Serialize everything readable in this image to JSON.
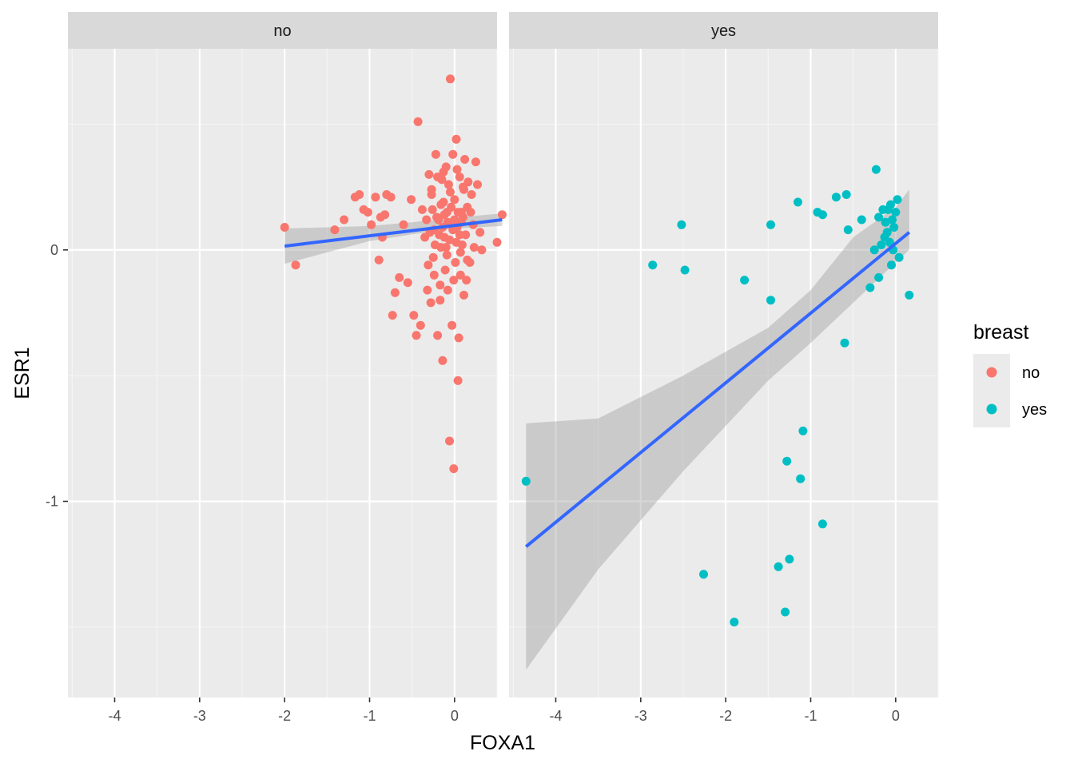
{
  "chart_data": {
    "type": "scatter",
    "xlabel": "FOXA1",
    "ylabel": "ESR1",
    "xlim": [
      -4.55,
      0.5
    ],
    "ylim": [
      -1.78,
      0.8
    ],
    "x_ticks": [
      -4,
      -3,
      -2,
      -1,
      0
    ],
    "y_ticks": [
      0,
      -1
    ],
    "grid": true,
    "legend": {
      "title": "breast",
      "position": "right",
      "entries": [
        {
          "label": "no",
          "color": "#f8766d"
        },
        {
          "label": "yes",
          "color": "#00bfc4"
        }
      ]
    },
    "smooth_color": "#3366ff",
    "facets": [
      {
        "strip": "no",
        "color": "#f8766d",
        "series": [
          {
            "name": "no",
            "points": [
              [
                -2.0,
                0.09
              ],
              [
                -1.87,
                -0.06
              ],
              [
                -1.41,
                0.08
              ],
              [
                -1.3,
                0.12
              ],
              [
                -1.17,
                0.21
              ],
              [
                -1.12,
                0.22
              ],
              [
                -1.07,
                0.16
              ],
              [
                -1.02,
                0.15
              ],
              [
                -0.98,
                0.1
              ],
              [
                -0.93,
                0.21
              ],
              [
                -0.89,
                -0.04
              ],
              [
                -0.87,
                0.13
              ],
              [
                -0.85,
                0.05
              ],
              [
                -0.82,
                0.14
              ],
              [
                -0.8,
                0.22
              ],
              [
                -0.75,
                0.21
              ],
              [
                -0.73,
                -0.26
              ],
              [
                -0.7,
                -0.17
              ],
              [
                -0.65,
                -0.11
              ],
              [
                -0.6,
                0.1
              ],
              [
                -0.55,
                -0.13
              ],
              [
                -0.51,
                0.2
              ],
              [
                -0.48,
                -0.26
              ],
              [
                -0.45,
                -0.34
              ],
              [
                -0.43,
                0.51
              ],
              [
                -0.4,
                -0.3
              ],
              [
                -0.38,
                0.16
              ],
              [
                -0.35,
                0.05
              ],
              [
                -0.32,
                -0.16
              ],
              [
                -0.3,
                0.3
              ],
              [
                -0.28,
                -0.21
              ],
              [
                -0.27,
                0.22
              ],
              [
                -0.25,
                -0.03
              ],
              [
                -0.24,
                0.08
              ],
              [
                -0.22,
                0.38
              ],
              [
                -0.2,
                -0.34
              ],
              [
                -0.19,
                0.12
              ],
              [
                -0.17,
                -0.2
              ],
              [
                -0.16,
                0.01
              ],
              [
                -0.15,
                0.28
              ],
              [
                -0.14,
                -0.44
              ],
              [
                -0.13,
                0.19
              ],
              [
                -0.12,
                0.05
              ],
              [
                -0.11,
                -0.08
              ],
              [
                -0.1,
                0.33
              ],
              [
                -0.09,
                0.15
              ],
              [
                -0.08,
                -0.16
              ],
              [
                -0.07,
                0.26
              ],
              [
                -0.06,
                -0.76
              ],
              [
                -0.05,
                0.68
              ],
              [
                -0.04,
                0.1
              ],
              [
                -0.03,
                -0.3
              ],
              [
                -0.02,
                0.38
              ],
              [
                -0.01,
                -0.87
              ],
              [
                0.0,
                0.2
              ],
              [
                0.01,
                -0.05
              ],
              [
                0.02,
                0.44
              ],
              [
                0.03,
                0.09
              ],
              [
                0.04,
                -0.52
              ],
              [
                0.05,
                -0.35
              ],
              [
                0.06,
                0.29
              ],
              [
                0.07,
                -0.1
              ],
              [
                0.08,
                0.15
              ],
              [
                0.09,
                0.02
              ],
              [
                0.1,
                0.25
              ],
              [
                0.11,
                -0.18
              ],
              [
                0.12,
                0.36
              ],
              [
                0.13,
                0.06
              ],
              [
                0.14,
                -0.12
              ],
              [
                0.15,
                0.17
              ],
              [
                0.16,
                0.27
              ],
              [
                0.18,
                -0.05
              ],
              [
                0.2,
                0.22
              ],
              [
                0.22,
                0.1
              ],
              [
                0.25,
                0.35
              ],
              [
                0.27,
                0.26
              ],
              [
                0.3,
                0.07
              ],
              [
                0.32,
                0.0
              ],
              [
                0.5,
                0.03
              ],
              [
                0.56,
                0.14
              ],
              [
                -0.33,
                0.12
              ],
              [
                -0.29,
                0.07
              ],
              [
                -0.26,
                0.16
              ],
              [
                -0.23,
                0.02
              ],
              [
                -0.21,
                0.13
              ],
              [
                -0.18,
                0.06
              ],
              [
                -0.16,
                0.18
              ],
              [
                -0.14,
                0.09
              ],
              [
                -0.12,
                0.14
              ],
              [
                -0.1,
                0.01
              ],
              [
                -0.08,
                0.11
              ],
              [
                -0.06,
                0.04
              ],
              [
                -0.04,
                0.17
              ],
              [
                -0.02,
                0.08
              ],
              [
                0.0,
                0.12
              ],
              [
                0.02,
                0.03
              ],
              [
                0.04,
                0.15
              ],
              [
                0.06,
                0.06
              ],
              [
                0.08,
                0.11
              ],
              [
                0.1,
                0.13
              ],
              [
                -0.31,
                -0.06
              ],
              [
                -0.27,
                0.24
              ],
              [
                -0.24,
                -0.1
              ],
              [
                -0.2,
                0.29
              ],
              [
                -0.17,
                -0.14
              ],
              [
                -0.13,
                0.31
              ],
              [
                -0.09,
                -0.02
              ],
              [
                -0.05,
                0.23
              ],
              [
                -0.01,
                -0.12
              ],
              [
                0.03,
                0.32
              ],
              [
                0.07,
                -0.01
              ],
              [
                0.11,
                0.24
              ],
              [
                0.15,
                -0.04
              ],
              [
                0.19,
                0.15
              ],
              [
                0.23,
                0.01
              ]
            ]
          }
        ],
        "smooth_line": {
          "x": [
            -2.0,
            0.56
          ],
          "y": [
            0.015,
            0.12
          ]
        },
        "smooth_band": {
          "x": [
            -2.0,
            -1.5,
            -1.0,
            -0.5,
            0.0,
            0.56
          ],
          "lower": [
            -0.055,
            -0.01,
            0.035,
            0.062,
            0.085,
            0.095
          ],
          "upper": [
            0.085,
            0.09,
            0.095,
            0.11,
            0.128,
            0.145
          ]
        }
      },
      {
        "strip": "yes",
        "color": "#00bfc4",
        "series": [
          {
            "name": "yes",
            "points": [
              [
                -4.35,
                -0.92
              ],
              [
                -2.86,
                -0.06
              ],
              [
                -2.52,
                0.1
              ],
              [
                -2.48,
                -0.08
              ],
              [
                -2.26,
                -1.29
              ],
              [
                -1.9,
                -1.48
              ],
              [
                -1.78,
                -0.12
              ],
              [
                -1.47,
                0.1
              ],
              [
                -1.47,
                -0.2
              ],
              [
                -1.38,
                -1.26
              ],
              [
                -1.3,
                -1.44
              ],
              [
                -1.28,
                -0.84
              ],
              [
                -1.25,
                -1.23
              ],
              [
                -1.15,
                0.19
              ],
              [
                -1.12,
                -0.91
              ],
              [
                -1.09,
                -0.72
              ],
              [
                -0.92,
                0.15
              ],
              [
                -0.86,
                -1.09
              ],
              [
                -0.86,
                0.14
              ],
              [
                -0.7,
                0.21
              ],
              [
                -0.6,
                -0.37
              ],
              [
                -0.58,
                0.22
              ],
              [
                -0.56,
                0.08
              ],
              [
                -0.4,
                0.12
              ],
              [
                -0.3,
                -0.15
              ],
              [
                -0.25,
                0.0
              ],
              [
                -0.23,
                0.32
              ],
              [
                -0.2,
                -0.11
              ],
              [
                -0.2,
                0.13
              ],
              [
                -0.17,
                0.02
              ],
              [
                -0.15,
                0.16
              ],
              [
                -0.13,
                0.05
              ],
              [
                -0.12,
                0.11
              ],
              [
                -0.1,
                0.07
              ],
              [
                -0.09,
                0.16
              ],
              [
                -0.07,
                0.03
              ],
              [
                -0.06,
                0.18
              ],
              [
                -0.05,
                -0.06
              ],
              [
                -0.04,
                0.12
              ],
              [
                -0.03,
                0.0
              ],
              [
                -0.02,
                0.09
              ],
              [
                0.0,
                0.15
              ],
              [
                0.02,
                0.2
              ],
              [
                0.04,
                -0.03
              ],
              [
                0.16,
                -0.18
              ]
            ]
          }
        ],
        "smooth_line": {
          "x": [
            -4.35,
            0.16
          ],
          "y": [
            -1.18,
            0.07
          ]
        },
        "smooth_band": {
          "x": [
            -4.35,
            -3.5,
            -2.5,
            -1.5,
            -1.0,
            -0.5,
            0.0,
            0.16
          ],
          "lower": [
            -1.67,
            -1.27,
            -0.88,
            -0.52,
            -0.37,
            -0.21,
            -0.05,
            0.0
          ],
          "upper": [
            -0.69,
            -0.67,
            -0.5,
            -0.31,
            -0.16,
            0.05,
            0.17,
            0.24
          ]
        }
      }
    ]
  }
}
